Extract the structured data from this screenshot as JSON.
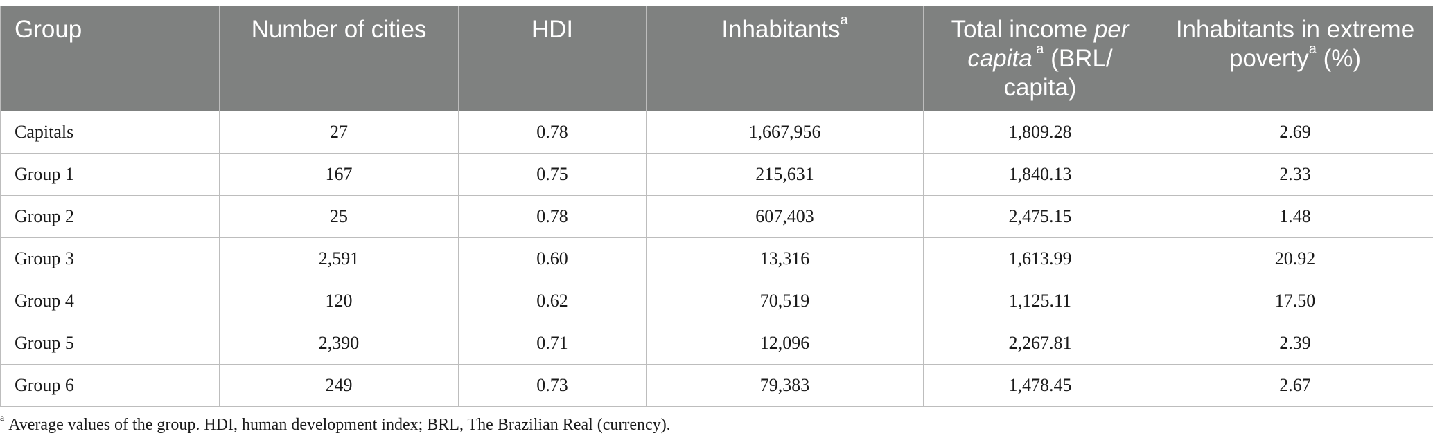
{
  "table": {
    "headers": [
      {
        "text": "Group",
        "sup": ""
      },
      {
        "text": "Number of cities",
        "sup": ""
      },
      {
        "text": "HDI",
        "sup": ""
      },
      {
        "text": "Inhabitants",
        "sup": "a"
      },
      {
        "pre": "Total income ",
        "em": "per capita",
        "sup": " a",
        "post": " (BRL/ capita)"
      },
      {
        "text": "Inhabitants in extreme poverty",
        "sup": "a",
        "post": " (%)"
      }
    ],
    "rows": [
      [
        "Capitals",
        "27",
        "0.78",
        "1,667,956",
        "1,809.28",
        "2.69"
      ],
      [
        "Group 1",
        "167",
        "0.75",
        "215,631",
        "1,840.13",
        "2.33"
      ],
      [
        "Group 2",
        "25",
        "0.78",
        "607,403",
        "2,475.15",
        "1.48"
      ],
      [
        "Group 3",
        "2,591",
        "0.60",
        "13,316",
        "1,613.99",
        "20.92"
      ],
      [
        "Group 4",
        "120",
        "0.62",
        "70,519",
        "1,125.11",
        "17.50"
      ],
      [
        "Group 5",
        "2,390",
        "0.71",
        "12,096",
        "2,267.81",
        "2.39"
      ],
      [
        "Group 6",
        "249",
        "0.73",
        "79,383",
        "1,478.45",
        "2.67"
      ]
    ]
  },
  "footnote": {
    "marker": "a",
    "text": "Average values of the group. HDI, human development index; BRL, The Brazilian Real (currency)."
  }
}
